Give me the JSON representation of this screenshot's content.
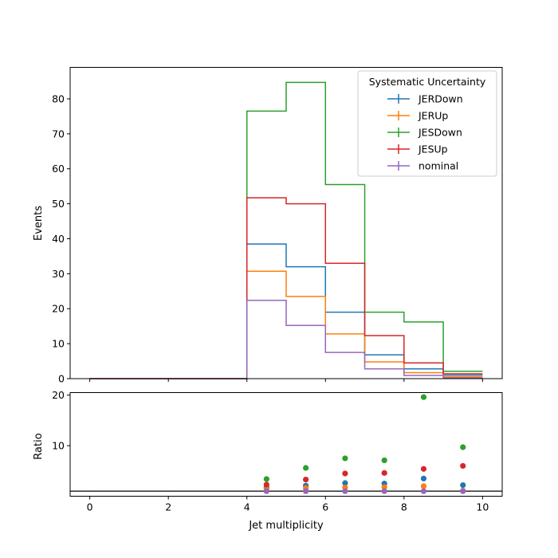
{
  "chart_data": {
    "type": "line",
    "drawstyle": "steps-post",
    "xlabel": "Jet multiplicity",
    "ylabel": "Events",
    "ratio_ylabel": "Ratio",
    "xlim": [
      -0.5,
      10.5
    ],
    "ylim": [
      0,
      89
    ],
    "ratio_ylim": [
      0,
      20.5
    ],
    "x_ticks": [
      0,
      2,
      4,
      6,
      8,
      10
    ],
    "y_ticks": [
      0,
      10,
      20,
      30,
      40,
      50,
      60,
      70,
      80
    ],
    "ratio_y_ticks": [
      10,
      20
    ],
    "ratio_reference": 1,
    "legend": {
      "title": "Systematic Uncertainty",
      "placement": "top-right"
    },
    "bin_edges": [
      0,
      1,
      2,
      3,
      4,
      5,
      6,
      7,
      8,
      9,
      10
    ],
    "series": [
      {
        "name": "JERDown",
        "color": "#1f77b4",
        "values": [
          0,
          0,
          0,
          0,
          38.5,
          32,
          19,
          6.8,
          2.8,
          1.0
        ],
        "ratio": [
          null,
          null,
          null,
          null,
          1.7,
          2.1,
          2.6,
          2.5,
          3.5,
          2.2
        ]
      },
      {
        "name": "JERUp",
        "color": "#ff7f0e",
        "values": [
          0,
          0,
          0,
          0,
          30.7,
          23.5,
          12.8,
          4.8,
          1.7,
          0.5
        ],
        "ratio": [
          null,
          null,
          null,
          null,
          1.4,
          1.6,
          1.7,
          1.8,
          2.0,
          1.1
        ]
      },
      {
        "name": "JESDown",
        "color": "#2ca02c",
        "values": [
          0,
          0,
          0,
          0,
          76.5,
          84.7,
          55.5,
          19,
          16.2,
          2.1
        ],
        "ratio": [
          null,
          null,
          null,
          null,
          3.4,
          5.6,
          7.5,
          7.1,
          19.6,
          9.7
        ]
      },
      {
        "name": "JESUp",
        "color": "#d62728",
        "values": [
          0,
          0,
          0,
          0,
          51.7,
          50,
          33,
          12.3,
          4.5,
          1.4
        ],
        "ratio": [
          null,
          null,
          null,
          null,
          2.3,
          3.3,
          4.5,
          4.6,
          5.4,
          6.0
        ]
      },
      {
        "name": "nominal",
        "color": "#9467bd",
        "values": [
          0,
          0,
          0,
          0,
          22.4,
          15.2,
          7.5,
          2.8,
          0.9,
          0.2
        ],
        "ratio": [
          null,
          null,
          null,
          null,
          1.0,
          1.0,
          1.0,
          1.0,
          1.0,
          1.0
        ]
      }
    ]
  }
}
